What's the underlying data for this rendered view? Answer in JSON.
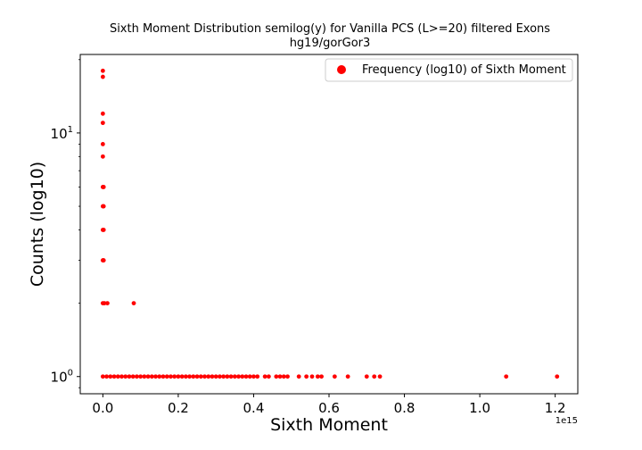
{
  "chart_data": {
    "type": "scatter",
    "title": "Sixth Moment Distribution semilog(y) for Vanilla PCS (L>=20) filtered Exons",
    "subtitle": "hg19/gorGor3",
    "xlabel": "Sixth Moment",
    "ylabel": "Counts (log10)",
    "x_offset_label": "1e15",
    "x_scale_multiplier": 1000000000000000.0,
    "xlim": [
      -0.06,
      1.26
    ],
    "ylim": [
      0.85,
      21
    ],
    "yscale": "log",
    "x_ticks": [
      0.0,
      0.2,
      0.4,
      0.6,
      0.8,
      1.0,
      1.2
    ],
    "x_tick_labels": [
      "0.0",
      "0.2",
      "0.4",
      "0.6",
      "0.8",
      "1.0",
      "1.2"
    ],
    "y_ticks": [
      1,
      10
    ],
    "y_tick_labels": [
      "10^0",
      "10^1"
    ],
    "grid": false,
    "legend": {
      "position": "top-right",
      "entries": [
        "Frequency (log10) of Sixth Moment"
      ]
    },
    "series": [
      {
        "name": "Frequency (log10) of Sixth Moment",
        "color": "#ff0000",
        "points": [
          [
            0.0,
            18
          ],
          [
            0.0,
            17
          ],
          [
            0.0,
            12
          ],
          [
            0.0,
            11
          ],
          [
            0.0,
            9
          ],
          [
            0.0,
            8
          ],
          [
            0.0,
            6
          ],
          [
            0.002,
            6
          ],
          [
            0.0,
            5
          ],
          [
            0.002,
            5
          ],
          [
            0.0,
            4
          ],
          [
            0.002,
            4
          ],
          [
            0.0,
            3
          ],
          [
            0.002,
            3
          ],
          [
            0.0,
            2
          ],
          [
            0.004,
            2
          ],
          [
            0.012,
            2
          ],
          [
            0.082,
            2
          ],
          [
            0.0,
            1
          ],
          [
            0.01,
            1
          ],
          [
            0.02,
            1
          ],
          [
            0.03,
            1
          ],
          [
            0.04,
            1
          ],
          [
            0.05,
            1
          ],
          [
            0.06,
            1
          ],
          [
            0.07,
            1
          ],
          [
            0.08,
            1
          ],
          [
            0.09,
            1
          ],
          [
            0.1,
            1
          ],
          [
            0.11,
            1
          ],
          [
            0.12,
            1
          ],
          [
            0.13,
            1
          ],
          [
            0.14,
            1
          ],
          [
            0.15,
            1
          ],
          [
            0.16,
            1
          ],
          [
            0.17,
            1
          ],
          [
            0.18,
            1
          ],
          [
            0.19,
            1
          ],
          [
            0.2,
            1
          ],
          [
            0.21,
            1
          ],
          [
            0.22,
            1
          ],
          [
            0.23,
            1
          ],
          [
            0.24,
            1
          ],
          [
            0.25,
            1
          ],
          [
            0.26,
            1
          ],
          [
            0.27,
            1
          ],
          [
            0.28,
            1
          ],
          [
            0.29,
            1
          ],
          [
            0.3,
            1
          ],
          [
            0.31,
            1
          ],
          [
            0.32,
            1
          ],
          [
            0.33,
            1
          ],
          [
            0.34,
            1
          ],
          [
            0.35,
            1
          ],
          [
            0.36,
            1
          ],
          [
            0.37,
            1
          ],
          [
            0.38,
            1
          ],
          [
            0.39,
            1
          ],
          [
            0.4,
            1
          ],
          [
            0.41,
            1
          ],
          [
            0.43,
            1
          ],
          [
            0.44,
            1
          ],
          [
            0.46,
            1
          ],
          [
            0.47,
            1
          ],
          [
            0.48,
            1
          ],
          [
            0.49,
            1
          ],
          [
            0.52,
            1
          ],
          [
            0.54,
            1
          ],
          [
            0.555,
            1
          ],
          [
            0.57,
            1
          ],
          [
            0.58,
            1
          ],
          [
            0.615,
            1
          ],
          [
            0.65,
            1
          ],
          [
            0.7,
            1
          ],
          [
            0.72,
            1
          ],
          [
            0.735,
            1
          ],
          [
            1.07,
            1
          ],
          [
            1.205,
            1
          ]
        ]
      }
    ]
  }
}
